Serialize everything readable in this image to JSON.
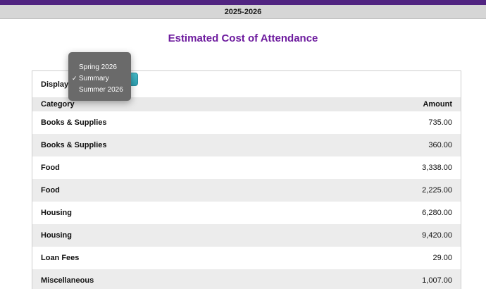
{
  "top": {
    "year": "2025-2026"
  },
  "page": {
    "title": "Estimated Cost of Attendance"
  },
  "display": {
    "label": "Display",
    "select_value": "Summary",
    "dropdown": {
      "check_icon": "✓",
      "options": [
        {
          "label": "Spring 2026",
          "selected": false
        },
        {
          "label": "Summary",
          "selected": true
        },
        {
          "label": "Summer 2026",
          "selected": false
        }
      ]
    }
  },
  "table": {
    "headers": {
      "category": "Category",
      "amount": "Amount"
    },
    "rows": [
      {
        "category": "Books & Supplies",
        "amount": "735.00"
      },
      {
        "category": "Books & Supplies",
        "amount": "360.00"
      },
      {
        "category": "Food",
        "amount": "3,338.00"
      },
      {
        "category": "Food",
        "amount": "2,225.00"
      },
      {
        "category": "Housing",
        "amount": "6,280.00"
      },
      {
        "category": "Housing",
        "amount": "9,420.00"
      },
      {
        "category": "Loan Fees",
        "amount": "29.00"
      },
      {
        "category": "Miscellaneous",
        "amount": "1,007.00"
      }
    ]
  },
  "colors": {
    "accent_purple": "#512481",
    "title_purple": "#6d1b9e",
    "select_teal": "#2f9fb0",
    "menu_gray": "#6a6a6a"
  }
}
